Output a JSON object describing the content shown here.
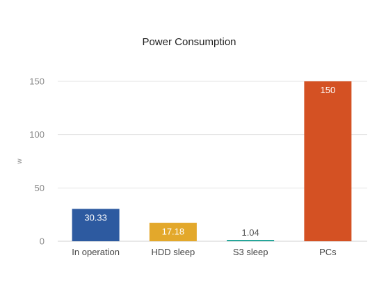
{
  "chart_data": {
    "type": "bar",
    "title": "Power Consumption",
    "xlabel": "",
    "ylabel": "w",
    "categories": [
      "In operation",
      "HDD sleep",
      "S3 sleep",
      "PCs"
    ],
    "values": [
      30.33,
      17.18,
      1.04,
      150
    ],
    "data_labels": [
      "30.33",
      "17.18",
      "1.04",
      "150"
    ],
    "colors": [
      "#2d5aa0",
      "#e3a82b",
      "#26a69a",
      "#d45123"
    ],
    "label_colors": [
      "#ffffff",
      "#ffffff",
      "#555555",
      "#ffffff"
    ],
    "ylim": [
      0,
      150
    ],
    "yticks": [
      0,
      50,
      100,
      150
    ],
    "ytick_labels": [
      "0",
      "50",
      "100",
      "150"
    ],
    "grid": true,
    "legend": "none"
  }
}
